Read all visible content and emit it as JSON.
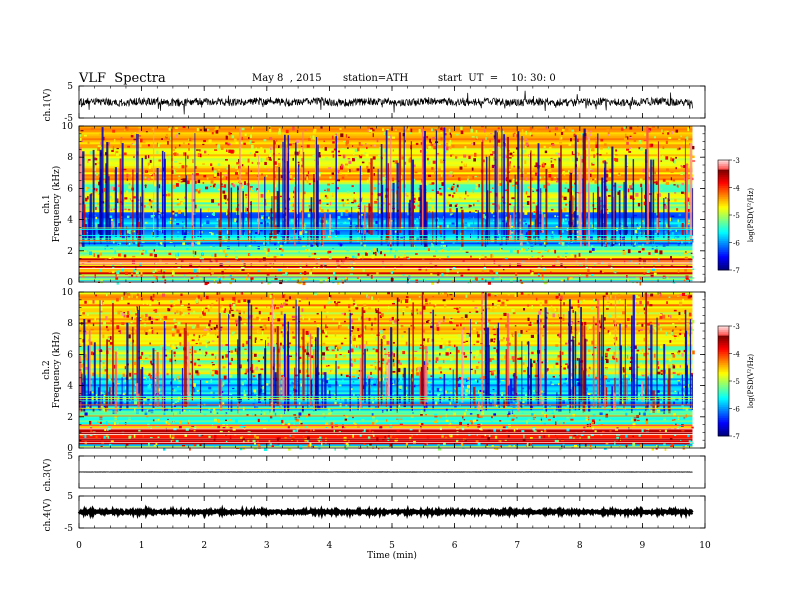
{
  "header": {
    "title": "VLF  Spectra",
    "date": "May 8  , 2015",
    "station": "station=ATH",
    "start": "start  UT  =    10: 30: 0"
  },
  "chart_data": [
    {
      "type": "line",
      "name": "ch1-waveform",
      "ylabel": "ch.1(V)",
      "ylim": [
        -5,
        5
      ],
      "yticks": [
        "5",
        "-5"
      ],
      "baseline": 0,
      "amplitude_typical": 1.2
    },
    {
      "type": "heatmap",
      "name": "ch1-spectrogram",
      "ylabel_channel": "ch.1",
      "ylabel": "Frequency  (kHz)",
      "ylim": [
        0,
        10
      ],
      "yticks": [
        "0",
        "2",
        "4",
        "6",
        "8",
        "10"
      ],
      "colorbar": {
        "label": "log(PSD(V²/Hz)",
        "range": [
          -7,
          -3
        ],
        "ticks": [
          "-3",
          "-4",
          "-5",
          "-6",
          "-7"
        ]
      }
    },
    {
      "type": "heatmap",
      "name": "ch2-spectrogram",
      "ylabel_channel": "ch.2",
      "ylabel": "Frequency  (kHz)",
      "ylim": [
        0,
        10
      ],
      "yticks": [
        "0",
        "2",
        "4",
        "6",
        "8",
        "10"
      ],
      "colorbar": {
        "label": "log(PSD(V²/Hz)",
        "range": [
          -7,
          -3
        ],
        "ticks": [
          "-3",
          "-4",
          "-5",
          "-6",
          "-7"
        ]
      }
    },
    {
      "type": "line",
      "name": "ch3-waveform",
      "ylabel": "ch.3(V)",
      "ylim": [
        -5,
        5
      ],
      "yticks": [
        "5"
      ],
      "baseline": 0,
      "amplitude_typical": 0.05
    },
    {
      "type": "line",
      "name": "ch4-waveform",
      "ylabel": "ch.4(V)",
      "ylim": [
        -5,
        5
      ],
      "yticks": [
        "5",
        "-5"
      ],
      "baseline": 0,
      "amplitude_typical": 0.3
    }
  ],
  "xaxis": {
    "label": "Time  (min)",
    "range": [
      0,
      10
    ],
    "ticks": [
      "0",
      "1",
      "2",
      "3",
      "4",
      "5",
      "6",
      "7",
      "8",
      "9",
      "10"
    ],
    "data_end": 9.8
  }
}
